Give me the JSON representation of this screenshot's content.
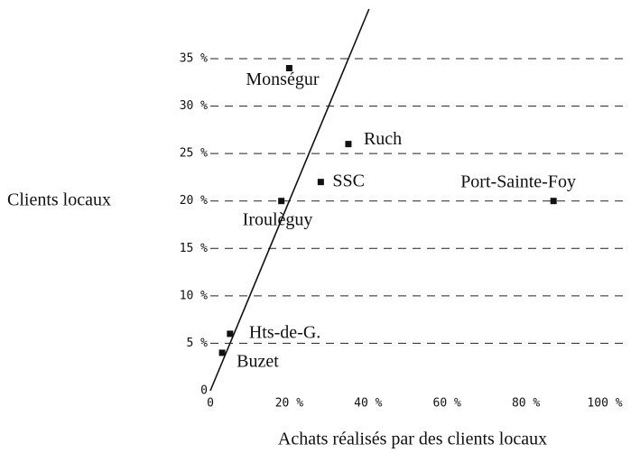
{
  "chart_data": {
    "type": "scatter",
    "y_label": "Clients locaux",
    "x_label": "Achats réalisés par des clients locaux",
    "labels": [
      "Monségur",
      "Ruch",
      "SSC",
      "Port-Sainte-Foy",
      "Iroulèguy",
      "Hts-de-G.",
      "Buzet"
    ],
    "x": [
      20,
      35,
      28,
      87,
      18,
      5,
      3
    ],
    "y": [
      34,
      26,
      22,
      20,
      20,
      6,
      4
    ],
    "color": "#111111",
    "xlim": [
      0,
      100
    ],
    "ylim": [
      0,
      35
    ],
    "xticks": [
      0,
      {
        "value": 20,
        "label": "20 %"
      },
      {
        "value": 40,
        "label": "40 %"
      },
      {
        "value": 60,
        "label": "60 %"
      },
      {
        "value": 80,
        "label": "80 %"
      },
      {
        "value": 100,
        "label": "100 %"
      }
    ],
    "yticks": [
      0,
      {
        "value": 5,
        "label": "5 %"
      },
      {
        "value": 10,
        "label": "10 %"
      },
      {
        "value": 15,
        "label": "15 %"
      },
      {
        "value": 20,
        "label": "20 %"
      },
      {
        "value": 25,
        "label": "25 %"
      },
      {
        "value": 30,
        "label": "30 %"
      },
      {
        "value": 35,
        "label": "35 %"
      }
    ],
    "grid": true,
    "diagonal": true
  }
}
